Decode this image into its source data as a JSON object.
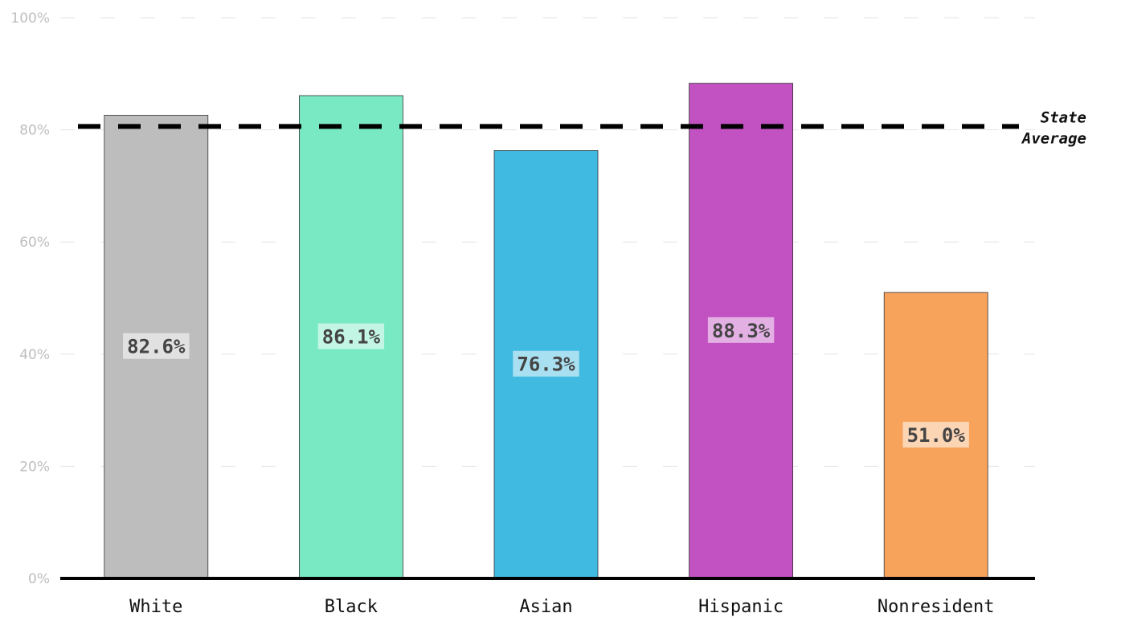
{
  "chart_data": {
    "type": "bar",
    "categories": [
      "White",
      "Black",
      "Asian",
      "Hispanic",
      "Nonresident"
    ],
    "values": [
      82.6,
      86.1,
      76.3,
      88.3,
      51.0
    ],
    "value_labels": [
      "82.6%",
      "86.1%",
      "76.3%",
      "88.3%",
      "51.0%"
    ],
    "colors": [
      "#bdbdbd",
      "#79e9c3",
      "#40bae1",
      "#c251c2",
      "#f8a35c"
    ],
    "ylim": [
      0,
      100
    ],
    "yticks": [
      0,
      20,
      40,
      60,
      80,
      100
    ],
    "ytick_labels": [
      "0%",
      "20%",
      "40%",
      "60%",
      "80%",
      "100%"
    ],
    "grid": true,
    "reference_line": {
      "value": 80.6,
      "label_lines": [
        "State",
        "Average"
      ],
      "style": "dashed",
      "color": "#000000"
    },
    "title": "",
    "xlabel": "",
    "ylabel": ""
  }
}
